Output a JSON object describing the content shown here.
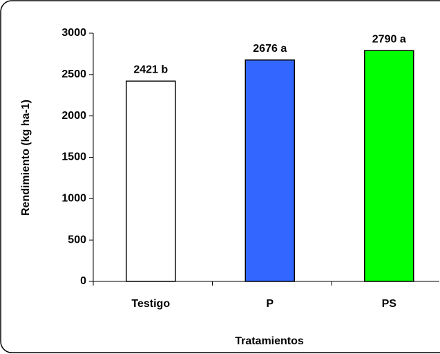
{
  "chart_data": {
    "type": "bar",
    "x_label": "Tratamientos",
    "y_label": "Rendimiento (kg ha-1)",
    "categories": [
      "Testigo",
      "P",
      "PS"
    ],
    "values": [
      2421,
      2676,
      2790
    ],
    "value_labels": [
      "2421 b",
      "2676 a",
      "2790 a"
    ],
    "colors": [
      "#ffffff",
      "#3366ff",
      "#00ff00"
    ],
    "ylim": [
      0,
      3000
    ],
    "yticks": [
      0,
      500,
      1000,
      1500,
      2000,
      2500,
      3000
    ],
    "grid": false
  }
}
